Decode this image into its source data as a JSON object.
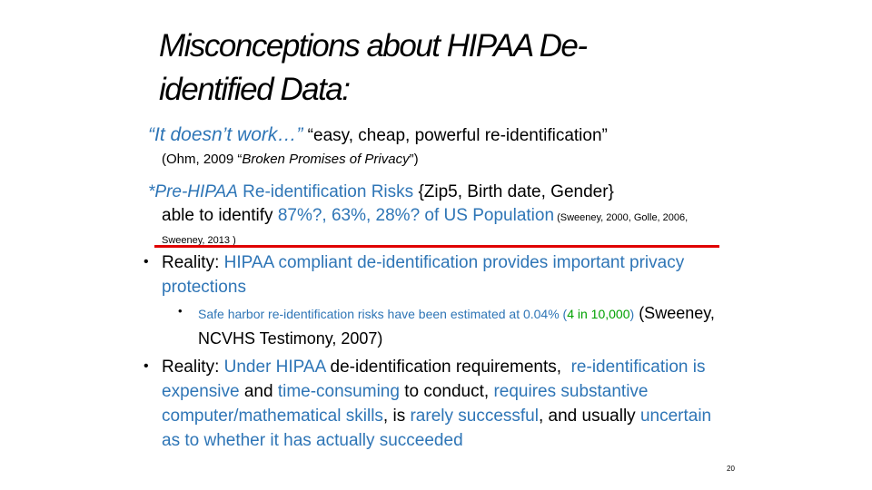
{
  "slide": {
    "title": [
      "Misconceptions about HIPAA De-",
      "identified Data:"
    ],
    "paragraphs": [
      {
        "runs": [
          {
            "text": "“It doesn’t work…”",
            "color": "#2e75b6",
            "italic": true,
            "size": 21
          },
          {
            "text": " “easy, cheap, powerful re-identification”",
            "size": 19
          }
        ]
      },
      {
        "runs": [
          {
            "text": "(Ohm, 2009 “",
            "size": 15
          },
          {
            "text": "Broken Promises of Privacy",
            "italic": true,
            "size": 15
          },
          {
            "text": "”)",
            "size": 15
          }
        ]
      },
      {
        "runs": [
          {
            "text": "*Pre-HIPAA",
            "color": "#2e75b6",
            "italic": true,
            "size": 19
          },
          {
            "text": " Re-identification Risks ",
            "color": "#2e75b6",
            "size": 19
          },
          {
            "text": "{Zip5, Birth date, Gender}",
            "size": 19
          }
        ]
      },
      {
        "runs": [
          {
            "text": "able to identify ",
            "size": 19
          },
          {
            "text": "87%?, 63%, 28%? of US Population",
            "color": "#2e75b6",
            "size": 19
          },
          {
            "text": " (Sweeney, 2000, Golle, 2006, Sweeney, 2013 )",
            "size": 11
          }
        ]
      },
      {
        "runs": [
          {
            "text": "Reality: ",
            "size": 19
          },
          {
            "text": "HIPAA compliant de-identification provides important privacy protections",
            "color": "#2e75b6",
            "size": 19
          }
        ]
      },
      {
        "runs": [
          {
            "text": "Safe harbor re-identification risks have been estimated at 0.04% (",
            "color": "#2e75b6",
            "size": 14
          },
          {
            "text": "4 in 10,000",
            "color": "#00a000",
            "size": 14
          },
          {
            "text": ")",
            "color": "#2e75b6",
            "size": 14
          },
          {
            "text": " (Sweeney, NCVHS Testimony, 2007)",
            "size": 18
          }
        ]
      },
      {
        "runs": [
          {
            "text": "Reality: ",
            "size": 19
          },
          {
            "text": "Under HIPAA",
            "color": "#2e75b6",
            "size": 19
          },
          {
            "text": " de-identification requirements,  ",
            "size": 19
          },
          {
            "text": "re-identification is expensive",
            "color": "#2e75b6",
            "size": 19
          },
          {
            "text": " and ",
            "size": 19
          },
          {
            "text": "time-consuming",
            "color": "#2e75b6",
            "size": 19
          },
          {
            "text": " to conduct, ",
            "size": 19
          },
          {
            "text": "requires substantive computer/mathematical skills",
            "color": "#2e75b6",
            "size": 19
          },
          {
            "text": ", is ",
            "size": 19
          },
          {
            "text": "rarely successful",
            "color": "#2e75b6",
            "size": 19
          },
          {
            "text": ", and usually ",
            "size": 19
          },
          {
            "text": "uncertain as to whether it has actually succeeded",
            "color": "#2e75b6",
            "size": 19
          }
        ]
      }
    ],
    "page_number": "20"
  }
}
